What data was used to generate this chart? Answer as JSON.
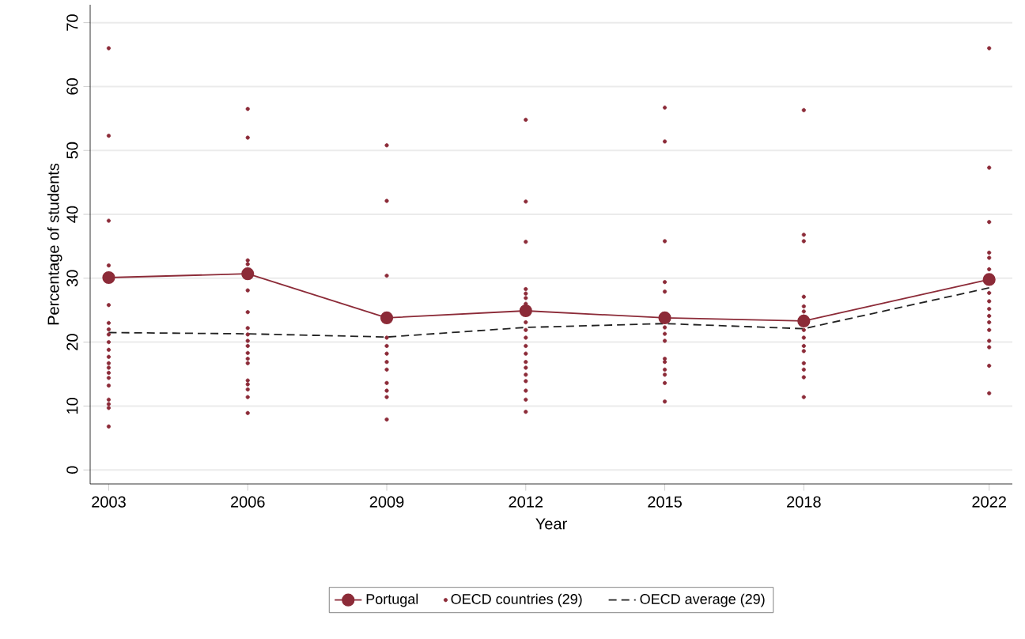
{
  "chart_data": {
    "type": "line",
    "xlabel": "Year",
    "ylabel": "Percentage of students",
    "x": [
      2003,
      2006,
      2009,
      2012,
      2015,
      2018,
      2022
    ],
    "series": [
      {
        "name": "Portugal",
        "color": "#8c2b38",
        "marker": "circle",
        "line_style": "solid",
        "values": [
          30.1,
          30.7,
          23.8,
          24.9,
          23.8,
          23.3,
          29.8
        ]
      },
      {
        "name": "OECD countries (29)",
        "type": "scatter",
        "color": "#8c2b38",
        "marker": "circle",
        "x": [
          2003,
          2003,
          2003,
          2003,
          2003,
          2003,
          2003,
          2003,
          2003,
          2003,
          2003,
          2003,
          2003,
          2003,
          2003,
          2003,
          2003,
          2003,
          2003,
          2003,
          2006,
          2006,
          2006,
          2006,
          2006,
          2006,
          2006,
          2006,
          2006,
          2006,
          2006,
          2006,
          2006,
          2006,
          2006,
          2006,
          2006,
          2006,
          2009,
          2009,
          2009,
          2009,
          2009,
          2009,
          2009,
          2009,
          2009,
          2009,
          2009,
          2009,
          2012,
          2012,
          2012,
          2012,
          2012,
          2012,
          2012,
          2012,
          2012,
          2012,
          2012,
          2012,
          2012,
          2012,
          2012,
          2012,
          2012,
          2012,
          2012,
          2015,
          2015,
          2015,
          2015,
          2015,
          2015,
          2015,
          2015,
          2015,
          2015,
          2015,
          2015,
          2015,
          2015,
          2018,
          2018,
          2018,
          2018,
          2018,
          2018,
          2018,
          2018,
          2018,
          2018,
          2018,
          2018,
          2018,
          2018,
          2018,
          2022,
          2022,
          2022,
          2022,
          2022,
          2022,
          2022,
          2022,
          2022,
          2022,
          2022,
          2022,
          2022,
          2022,
          2022,
          2022
        ],
        "values": [
          66,
          52.3,
          39,
          32,
          25.8,
          23,
          22,
          21.2,
          20,
          18.8,
          17.7,
          16.7,
          16,
          15.2,
          14.4,
          13.2,
          11,
          10.3,
          9.7,
          6.8,
          56.5,
          52,
          32.8,
          32.2,
          28.1,
          24.7,
          22.2,
          21.2,
          20.2,
          19.4,
          18.3,
          17.4,
          16.7,
          14,
          13.4,
          12.6,
          11.4,
          8.9,
          50.8,
          42.1,
          30.4,
          20.7,
          19.4,
          18.2,
          16.9,
          15.7,
          13.6,
          12.4,
          11.4,
          7.9,
          54.8,
          42,
          35.7,
          28.3,
          27.6,
          26.9,
          26,
          23.1,
          21.9,
          20.7,
          19.4,
          18.2,
          16.9,
          16,
          14.9,
          13.9,
          12.4,
          11,
          9.1,
          56.7,
          51.4,
          35.8,
          29.4,
          27.9,
          22.3,
          21.3,
          20.2,
          17.4,
          16.9,
          15.7,
          14.9,
          13.6,
          10.7,
          56.3,
          36.8,
          35.8,
          27.1,
          25.6,
          24.8,
          24,
          21.9,
          20.7,
          19.4,
          18.6,
          16.7,
          15.7,
          14.5,
          11.4,
          66,
          47.3,
          38.8,
          34,
          33.2,
          31.4,
          27.7,
          26.4,
          25.2,
          24.1,
          23.1,
          21.9,
          20.2,
          19.2,
          16.3,
          12
        ]
      },
      {
        "name": "OECD average (29)",
        "color": "#222222",
        "marker": "none",
        "line_style": "dashed",
        "values": [
          21.5,
          21.3,
          20.8,
          22.3,
          22.9,
          22.1,
          28.5
        ]
      }
    ],
    "xlim": [
      2002.6,
      2022.5
    ],
    "xticks": [
      2003,
      2006,
      2009,
      2012,
      2015,
      2018,
      2022
    ],
    "ylim": [
      -2.2,
      72.8
    ],
    "yticks": [
      0,
      10,
      20,
      30,
      40,
      50,
      60,
      70
    ],
    "grid": "y",
    "legend": "bottom"
  }
}
